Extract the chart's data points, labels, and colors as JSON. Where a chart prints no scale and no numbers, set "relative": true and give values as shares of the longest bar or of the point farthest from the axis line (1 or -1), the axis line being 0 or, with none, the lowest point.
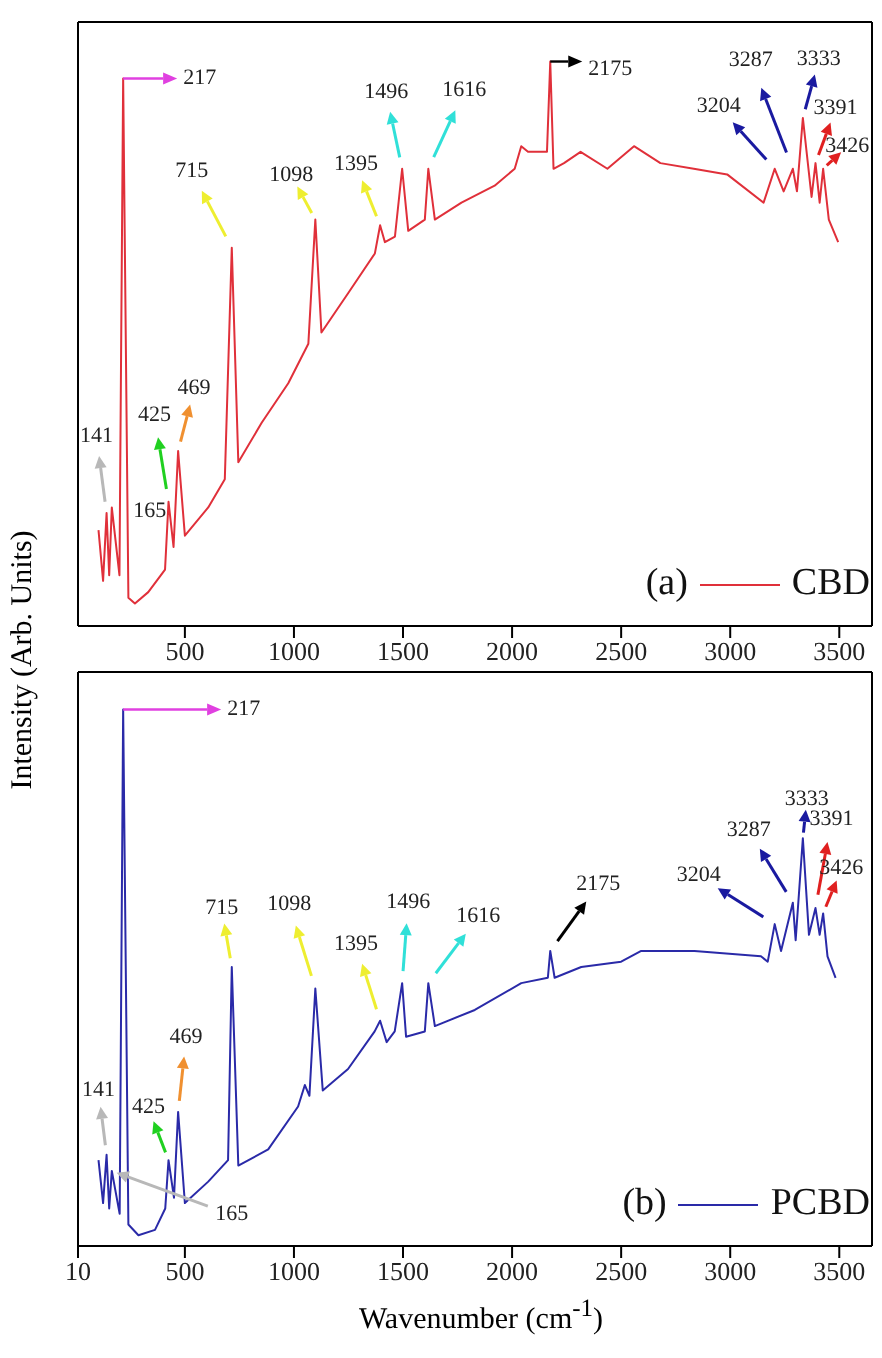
{
  "chart_data": [
    {
      "type": "line",
      "ylabel": "Intensity (Arb. Units)",
      "relative": true,
      "tick_labels": "x",
      "legend": "bottom right",
      "xlim": [
        10,
        3650
      ],
      "xticks": [
        500,
        1000,
        1500,
        2000,
        2500,
        3000,
        3500
      ],
      "x": [
        104,
        125,
        141,
        153,
        165,
        200,
        217,
        241,
        271,
        332,
        409,
        425,
        448,
        469,
        500,
        607,
        683,
        715,
        745,
        852,
        974,
        1066,
        1098,
        1126,
        1249,
        1371,
        1395,
        1417,
        1463,
        1496,
        1524,
        1600,
        1616,
        1646,
        1768,
        1920,
        2012,
        2042,
        2073,
        2160,
        2175,
        2190,
        2238,
        2314,
        2437,
        2559,
        2680,
        2833,
        2986,
        3153,
        3204,
        3245,
        3287,
        3306,
        3333,
        3373,
        3391,
        3410,
        3426,
        3452,
        3495
      ],
      "series": [
        {
          "name": "CBD",
          "color": "#e0303a",
          "values": [
            0.17,
            0.08,
            0.2,
            0.09,
            0.21,
            0.09,
            0.97,
            0.05,
            0.04,
            0.06,
            0.1,
            0.22,
            0.14,
            0.31,
            0.16,
            0.21,
            0.26,
            0.67,
            0.29,
            0.36,
            0.43,
            0.5,
            0.72,
            0.52,
            0.59,
            0.66,
            0.71,
            0.68,
            0.69,
            0.81,
            0.7,
            0.72,
            0.81,
            0.72,
            0.75,
            0.78,
            0.81,
            0.85,
            0.84,
            0.84,
            1.0,
            0.81,
            0.82,
            0.84,
            0.81,
            0.85,
            0.82,
            0.81,
            0.8,
            0.75,
            0.81,
            0.77,
            0.81,
            0.77,
            0.9,
            0.76,
            0.82,
            0.75,
            0.81,
            0.72,
            0.68
          ]
        }
      ],
      "annotations": [
        {
          "text": "141",
          "x": 141,
          "y": 0.2
        },
        {
          "text": "165",
          "x": 165,
          "y": 0.21
        },
        {
          "text": "217",
          "x": 217,
          "y": 0.97
        },
        {
          "text": "425",
          "x": 425,
          "y": 0.22
        },
        {
          "text": "469",
          "x": 469,
          "y": 0.31
        },
        {
          "text": "715",
          "x": 715,
          "y": 0.67
        },
        {
          "text": "1098",
          "x": 1098,
          "y": 0.72
        },
        {
          "text": "1395",
          "x": 1395,
          "y": 0.71
        },
        {
          "text": "1496",
          "x": 1496,
          "y": 0.81
        },
        {
          "text": "1616",
          "x": 1616,
          "y": 0.81
        },
        {
          "text": "2175",
          "x": 2175,
          "y": 1.0
        },
        {
          "text": "3204",
          "x": 3204,
          "y": 0.81
        },
        {
          "text": "3287",
          "x": 3287,
          "y": 0.81
        },
        {
          "text": "3333",
          "x": 3333,
          "y": 0.9
        },
        {
          "text": "3391",
          "x": 3391,
          "y": 0.82
        },
        {
          "text": "3426",
          "x": 3426,
          "y": 0.81
        },
        "(a)"
      ]
    },
    {
      "type": "line",
      "xlabel": "Wavenumber (cm$^{-1}$)",
      "relative": true,
      "tick_labels": "x",
      "legend": "bottom right",
      "xlim": [
        10,
        3650
      ],
      "xticks": [
        10,
        500,
        1000,
        1500,
        2000,
        2500,
        3000,
        3500
      ],
      "x": [
        104,
        125,
        141,
        153,
        165,
        201,
        217,
        241,
        287,
        363,
        410,
        425,
        450,
        469,
        500,
        607,
        698,
        715,
        745,
        882,
        1019,
        1050,
        1071,
        1098,
        1132,
        1248,
        1370,
        1395,
        1425,
        1462,
        1496,
        1514,
        1600,
        1616,
        1646,
        1829,
        2042,
        2164,
        2175,
        2195,
        2317,
        2500,
        2592,
        2836,
        3141,
        3172,
        3204,
        3233,
        3287,
        3300,
        3333,
        3361,
        3391,
        3410,
        3426,
        3446,
        3483
      ],
      "series": [
        {
          "name": "PCBD",
          "color": "#2a2aa8",
          "values": [
            0.16,
            0.08,
            0.17,
            0.07,
            0.14,
            0.06,
            1.0,
            0.04,
            0.02,
            0.03,
            0.07,
            0.16,
            0.09,
            0.25,
            0.08,
            0.12,
            0.16,
            0.52,
            0.15,
            0.18,
            0.26,
            0.3,
            0.28,
            0.48,
            0.29,
            0.33,
            0.4,
            0.42,
            0.38,
            0.4,
            0.49,
            0.39,
            0.4,
            0.49,
            0.41,
            0.44,
            0.49,
            0.5,
            0.55,
            0.5,
            0.52,
            0.53,
            0.55,
            0.55,
            0.54,
            0.53,
            0.6,
            0.55,
            0.64,
            0.57,
            0.76,
            0.58,
            0.63,
            0.58,
            0.62,
            0.54,
            0.5
          ]
        }
      ],
      "annotations": [
        {
          "text": "141",
          "x": 141,
          "y": 0.17
        },
        {
          "text": "165",
          "x": 165,
          "y": 0.14
        },
        {
          "text": "217",
          "x": 217,
          "y": 1.0
        },
        {
          "text": "425",
          "x": 425,
          "y": 0.16
        },
        {
          "text": "469",
          "x": 469,
          "y": 0.25
        },
        {
          "text": "715",
          "x": 715,
          "y": 0.52
        },
        {
          "text": "1098",
          "x": 1098,
          "y": 0.48
        },
        {
          "text": "1395",
          "x": 1395,
          "y": 0.42
        },
        {
          "text": "1496",
          "x": 1496,
          "y": 0.49
        },
        {
          "text": "1616",
          "x": 1616,
          "y": 0.49
        },
        {
          "text": "2175",
          "x": 2175,
          "y": 0.55
        },
        {
          "text": "3204",
          "x": 3204,
          "y": 0.6
        },
        {
          "text": "3287",
          "x": 3287,
          "y": 0.64
        },
        {
          "text": "3333",
          "x": 3333,
          "y": 0.76
        },
        {
          "text": "3391",
          "x": 3391,
          "y": 0.63
        },
        {
          "text": "3426",
          "x": 3426,
          "y": 0.62
        },
        "(b)"
      ]
    }
  ]
}
